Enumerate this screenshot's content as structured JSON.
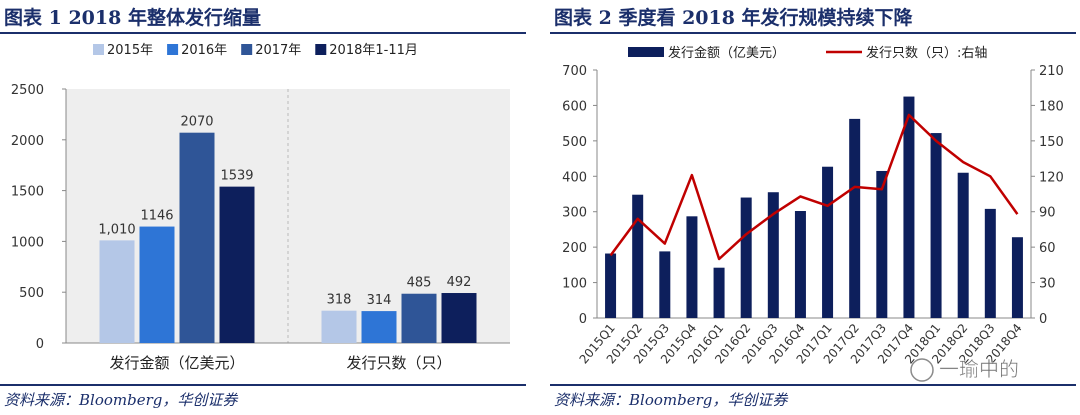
{
  "left": {
    "title": "图表 1   2018 年整体发行缩量",
    "source": "资料来源：Bloomberg，华创证券",
    "chart_data": {
      "type": "bar",
      "categories": [
        "发行金额（亿美元）",
        "发行只数（只）"
      ],
      "series": [
        {
          "name": "2015年",
          "values": [
            1010,
            318
          ],
          "labels": [
            "1,010",
            "318"
          ],
          "color": "#b4c7e7"
        },
        {
          "name": "2016年",
          "values": [
            1146,
            314
          ],
          "labels": [
            "1146",
            "314"
          ],
          "color": "#2e75d6"
        },
        {
          "name": "2017年",
          "values": [
            2070,
            485
          ],
          "labels": [
            "2070",
            "485"
          ],
          "color": "#2f5597"
        },
        {
          "name": "2018年1-11月",
          "values": [
            1539,
            492
          ],
          "labels": [
            "1539",
            "492"
          ],
          "color": "#0d1f5c"
        }
      ],
      "ylim": [
        0,
        2500
      ],
      "yticks": [
        0,
        500,
        1000,
        1500,
        2000,
        2500
      ],
      "legend": "top",
      "grid": false
    }
  },
  "right": {
    "title": "图表 2   季度看 2018 年发行规模持续下降",
    "source": "资料来源：Bloomberg，华创证券",
    "watermark": "一瑜中的",
    "chart_data": {
      "type": "bar+line",
      "categories": [
        "2015Q1",
        "2015Q2",
        "2015Q3",
        "2015Q4",
        "2016Q1",
        "2016Q2",
        "2016Q3",
        "2016Q4",
        "2017Q1",
        "2017Q2",
        "2017Q3",
        "2017Q4",
        "2018Q1",
        "2018Q2",
        "2018Q3",
        "2018Q4"
      ],
      "series": [
        {
          "name": "发行金额（亿美元）",
          "type": "bar",
          "axis": "left",
          "color": "#0d1f5c",
          "values": [
            182,
            348,
            188,
            287,
            142,
            340,
            355,
            302,
            427,
            562,
            415,
            625,
            522,
            410,
            308,
            228
          ]
        },
        {
          "name": "发行只数（只）:右轴",
          "type": "line",
          "axis": "right",
          "color": "#c00000",
          "values": [
            53,
            84,
            63,
            121,
            50,
            71,
            88,
            103,
            95,
            111,
            109,
            172,
            150,
            132,
            120,
            88
          ]
        }
      ],
      "ylim_left": [
        0,
        700
      ],
      "yticks_left": [
        0,
        100,
        200,
        300,
        400,
        500,
        600,
        700
      ],
      "ylim_right": [
        0,
        210
      ],
      "yticks_right": [
        0,
        30,
        60,
        90,
        120,
        150,
        180,
        210
      ],
      "legend": "top",
      "grid": false
    }
  }
}
